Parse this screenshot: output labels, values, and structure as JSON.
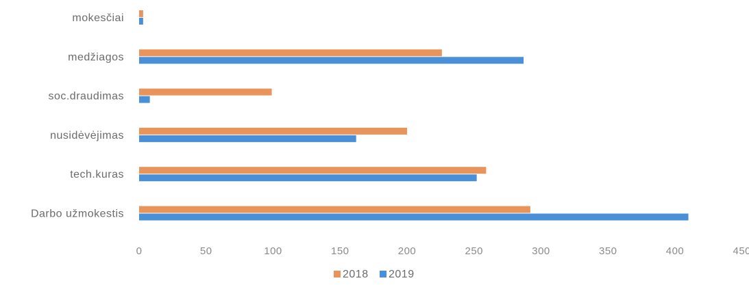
{
  "chart_data": {
    "type": "bar",
    "orientation": "horizontal",
    "categories": [
      "mokesčiai",
      "medžiagos",
      "soc.draudimas",
      "nusidėvėjimas",
      "tech.kuras",
      "Darbo užmokestis"
    ],
    "series": [
      {
        "name": "2018",
        "color": "#e8945a",
        "values": [
          3,
          226,
          99,
          200,
          259,
          292
        ]
      },
      {
        "name": "2019",
        "color": "#4a90d9",
        "values": [
          3,
          287,
          8,
          162,
          252,
          410
        ]
      }
    ],
    "x_ticks": [
      "0",
      "50",
      "100",
      "150",
      "200",
      "250",
      "300",
      "350",
      "400",
      "450"
    ],
    "xlim": [
      0,
      450
    ],
    "grid": false,
    "legend_position": "bottom"
  }
}
